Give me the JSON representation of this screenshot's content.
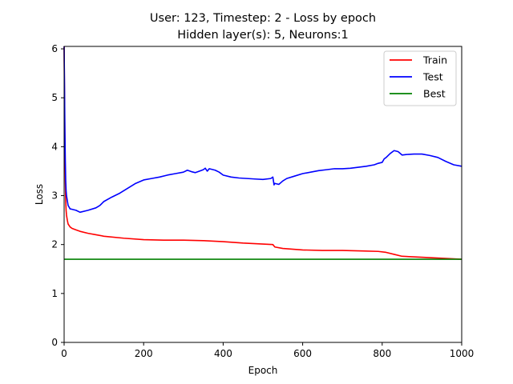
{
  "chart_data": {
    "type": "line",
    "title": "User: 123, Timestep: 2 - Loss by epoch",
    "subtitle": "Hidden layer(s): 5, Neurons:1",
    "xlabel": "Epoch",
    "ylabel": "Loss",
    "xlim": [
      0,
      1000
    ],
    "ylim": [
      0,
      6.05
    ],
    "xticks": [
      0,
      200,
      400,
      600,
      800,
      1000
    ],
    "yticks": [
      0,
      1,
      2,
      3,
      4,
      5,
      6
    ],
    "grid": false,
    "legend_position": "top-right",
    "series": [
      {
        "name": "Train",
        "color": "#ff0000",
        "x": [
          0,
          1,
          2,
          3,
          4,
          5,
          6,
          8,
          10,
          15,
          20,
          30,
          40,
          60,
          80,
          100,
          150,
          200,
          250,
          300,
          350,
          400,
          450,
          500,
          525,
          530,
          550,
          600,
          650,
          700,
          750,
          790,
          810,
          830,
          850,
          900,
          950,
          1000
        ],
        "y": [
          6.05,
          5.0,
          4.0,
          3.3,
          2.9,
          2.7,
          2.6,
          2.5,
          2.42,
          2.36,
          2.33,
          2.3,
          2.27,
          2.23,
          2.2,
          2.17,
          2.13,
          2.1,
          2.09,
          2.09,
          2.08,
          2.06,
          2.03,
          2.01,
          2.0,
          1.95,
          1.92,
          1.89,
          1.88,
          1.88,
          1.87,
          1.86,
          1.84,
          1.8,
          1.76,
          1.74,
          1.72,
          1.7
        ]
      },
      {
        "name": "Test",
        "color": "#0000ff",
        "x": [
          0,
          1,
          2,
          3,
          4,
          5,
          6,
          8,
          10,
          15,
          20,
          30,
          40,
          60,
          80,
          90,
          100,
          120,
          140,
          160,
          180,
          200,
          220,
          240,
          260,
          280,
          300,
          310,
          320,
          330,
          340,
          350,
          355,
          360,
          365,
          370,
          375,
          380,
          390,
          400,
          420,
          440,
          460,
          480,
          500,
          520,
          525,
          528,
          530,
          535,
          540,
          550,
          560,
          580,
          600,
          620,
          640,
          660,
          680,
          700,
          720,
          740,
          760,
          780,
          790,
          800,
          805,
          810,
          820,
          830,
          840,
          850,
          860,
          880,
          900,
          920,
          940,
          960,
          980,
          1000
        ],
        "y": [
          6.05,
          5.2,
          4.3,
          3.7,
          3.3,
          3.1,
          3.0,
          2.9,
          2.8,
          2.73,
          2.72,
          2.7,
          2.66,
          2.7,
          2.75,
          2.8,
          2.88,
          2.97,
          3.05,
          3.15,
          3.25,
          3.32,
          3.35,
          3.38,
          3.42,
          3.45,
          3.48,
          3.52,
          3.49,
          3.47,
          3.5,
          3.53,
          3.56,
          3.5,
          3.55,
          3.54,
          3.53,
          3.52,
          3.48,
          3.42,
          3.38,
          3.36,
          3.35,
          3.34,
          3.33,
          3.35,
          3.38,
          3.22,
          3.25,
          3.24,
          3.23,
          3.3,
          3.35,
          3.4,
          3.45,
          3.48,
          3.51,
          3.53,
          3.55,
          3.55,
          3.56,
          3.58,
          3.6,
          3.63,
          3.66,
          3.68,
          3.75,
          3.78,
          3.86,
          3.92,
          3.9,
          3.83,
          3.84,
          3.85,
          3.85,
          3.82,
          3.78,
          3.7,
          3.63,
          3.6
        ]
      },
      {
        "name": "Best",
        "color": "#008000",
        "x": [
          0,
          1000
        ],
        "y": [
          1.7,
          1.7
        ]
      }
    ]
  }
}
